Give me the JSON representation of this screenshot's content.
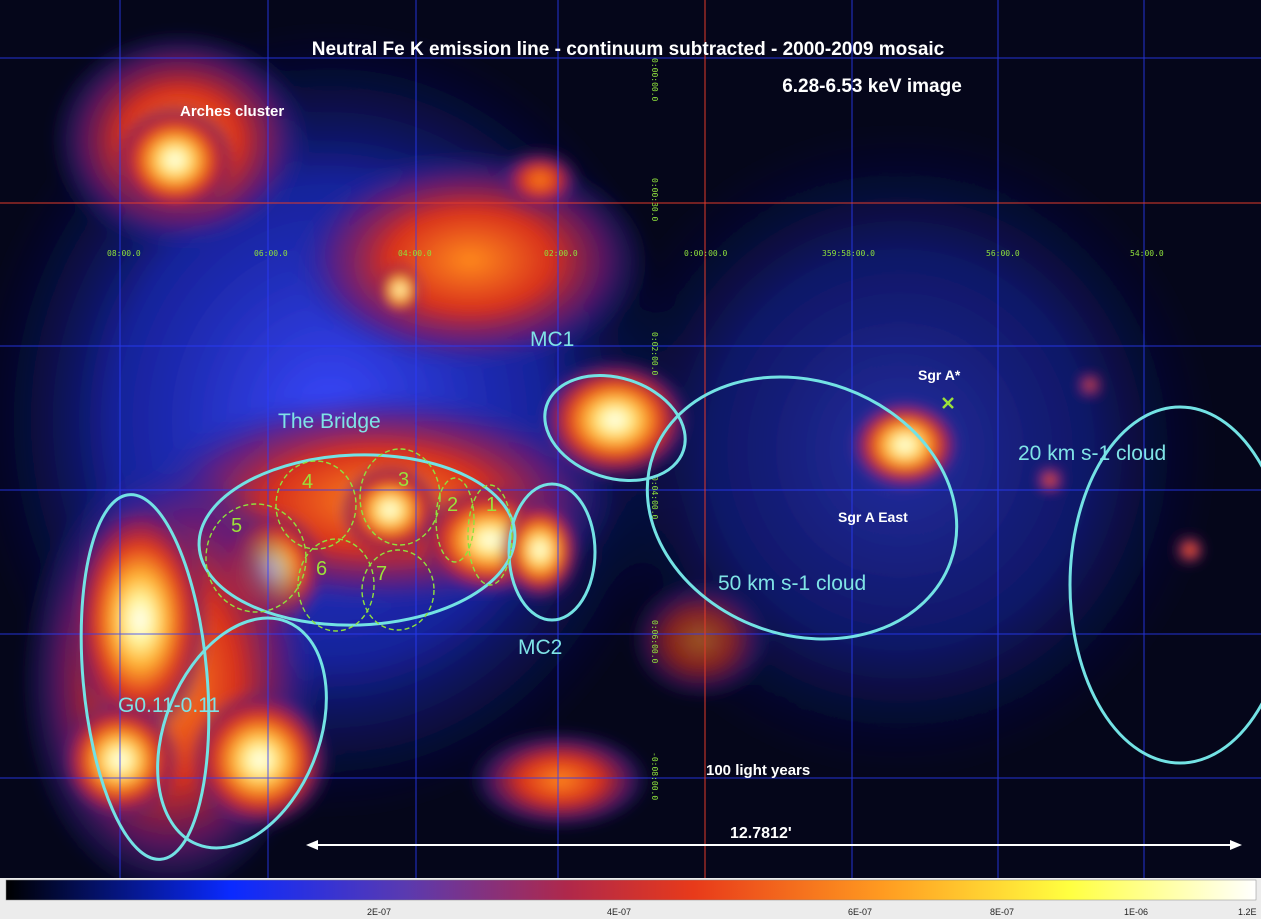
{
  "image": {
    "title_line1": "Neutral Fe K emission line - continuum subtracted - 2000-2009 mosaic",
    "title_line2": "6.28-6.53 keV image"
  },
  "labels": {
    "arches": "Arches cluster",
    "mc1": "MC1",
    "mc2": "MC2",
    "bridge": "The Bridge",
    "g011": "G0.11-0.11",
    "cloud50": "50 km s-1 cloud",
    "cloud20": "20 km s-1 cloud",
    "sgra_star": "Sgr A*",
    "sgra_east": "Sgr A East",
    "scale_text": "100 light years",
    "scale_length": "12.7812'"
  },
  "regions": [
    "1",
    "2",
    "3",
    "4",
    "5",
    "6",
    "7"
  ],
  "coords": {
    "top_row": [
      "08:00.0",
      "06:00.0",
      "04:00.0",
      "02:00.0",
      "0:00:00.0",
      "359:58:00.0",
      "56:00.0",
      "54:00.0"
    ],
    "vertical": [
      "0:00:00.0",
      "0:00:30.0",
      "0:02:00.0",
      "0:04:00.0",
      "0:06:00.0",
      "-0:08:00.0"
    ]
  },
  "colorbar": {
    "ticks": [
      "2E-07",
      "4E-07",
      "6E-07",
      "8E-07",
      "1E-06",
      "1.2E"
    ]
  },
  "colors": {
    "ellipse_cyan": "#73e2e4",
    "region_green": "#8fe23d",
    "grid_blue": "#2a3dff",
    "axis_red": "#e03a2a"
  }
}
